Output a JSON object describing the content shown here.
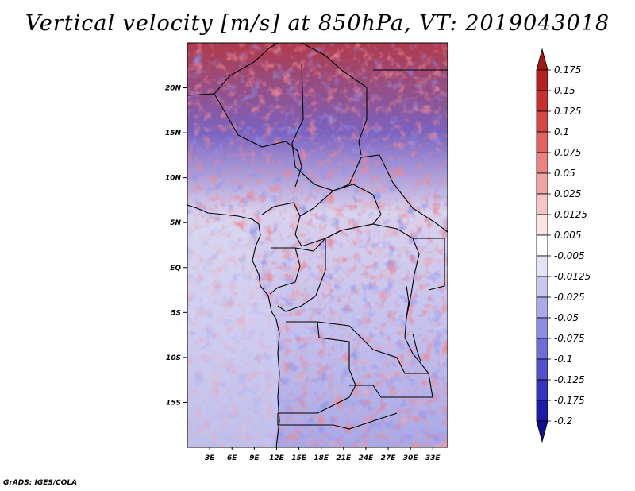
{
  "title": "Vertical velocity [m/s] at 850hPa, VT: 2019043018",
  "credit": "GrADS: IGES/COLA",
  "lat_labels": [
    "20N",
    "15N",
    "10N",
    "5N",
    "EQ",
    "5S",
    "10S",
    "15S"
  ],
  "lat_values": [
    20,
    15,
    10,
    5,
    0,
    -5,
    -10,
    -15
  ],
  "lon_labels": [
    "3E",
    "6E",
    "9E",
    "12E",
    "15E",
    "18E",
    "21E",
    "24E",
    "27E",
    "30E",
    "33E"
  ],
  "lon_values": [
    3,
    6,
    9,
    12,
    15,
    18,
    21,
    24,
    27,
    30,
    33
  ],
  "map_extent": {
    "lon_min": 0,
    "lon_max": 35,
    "lat_min": -20,
    "lat_max": 25
  },
  "colorbar": {
    "labels": [
      "0.175",
      "0.15",
      "0.125",
      "0.1",
      "0.075",
      "0.05",
      "0.025",
      "0.0125",
      "0.005",
      "-0.005",
      "-0.0125",
      "-0.025",
      "-0.05",
      "-0.075",
      "-0.1",
      "-0.125",
      "-0.175",
      "-0.2"
    ],
    "colors": [
      "#a01818",
      "#b52020",
      "#c83030",
      "#d84545",
      "#e26262",
      "#ea8282",
      "#f1a3a3",
      "#f7c4c4",
      "#fce4e4",
      "#ffffff",
      "#e4e4f8",
      "#c8c8f2",
      "#aaaaea",
      "#8c8ce0",
      "#6e6ed6",
      "#5050cc",
      "#3434bc",
      "#1c1ca8",
      "#10108c"
    ]
  },
  "map_style": {
    "north_tint": "#d23a3a",
    "south_tint": "#8e8ee6",
    "border_color": "#000000"
  }
}
